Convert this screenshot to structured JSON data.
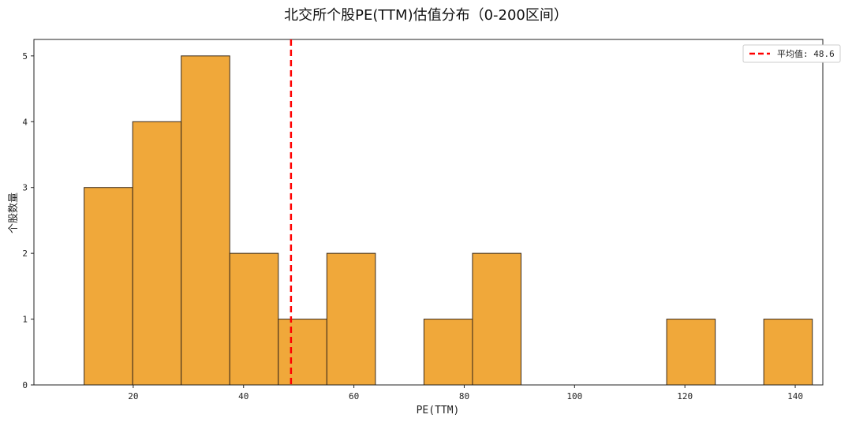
{
  "chart_data": {
    "type": "bar",
    "subtype": "histogram",
    "title": "北交所个股PE(TTM)估值分布（0-200区间）",
    "xlabel": "PE(TTM)",
    "ylabel": "个股数量",
    "xlim": [
      2,
      145
    ],
    "ylim": [
      0,
      5.25
    ],
    "xticks": [
      20,
      40,
      60,
      80,
      100,
      120,
      140
    ],
    "yticks": [
      0,
      1,
      2,
      3,
      4,
      5
    ],
    "bin_edges": [
      11.1,
      19.9,
      28.7,
      37.5,
      46.3,
      55.1,
      63.9,
      72.7,
      81.5,
      90.3,
      99.1,
      107.9,
      116.7,
      125.5,
      134.3,
      143.1
    ],
    "counts": [
      3,
      4,
      5,
      2,
      1,
      2,
      0,
      1,
      2,
      0,
      0,
      0,
      1,
      0,
      1
    ],
    "bar_color": "#f0a83a",
    "bar_edge_color": "#3a2a1a",
    "mean_line": {
      "value": 48.6,
      "label": "平均值: 48.6",
      "color": "#ff0000",
      "style": "dashed"
    },
    "legend": {
      "position": "top-right",
      "entries": [
        "平均值: 48.6"
      ]
    },
    "grid": false
  }
}
